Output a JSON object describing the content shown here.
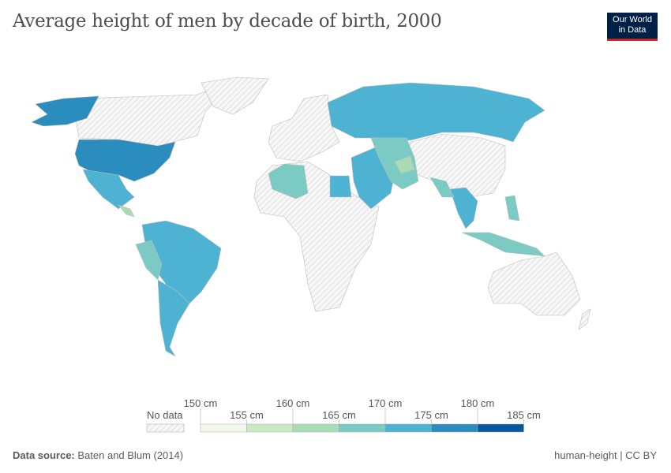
{
  "title": "Average height of men by decade of birth, 2000",
  "logo": {
    "line1": "Our World",
    "line2": "in Data"
  },
  "legend": {
    "no_data_label": "No data",
    "bins": [
      {
        "from": 150,
        "to": 155,
        "color": "#eff8ea"
      },
      {
        "from": 155,
        "to": 160,
        "color": "#cbeac3"
      },
      {
        "from": 160,
        "to": 165,
        "color": "#a8dcb5"
      },
      {
        "from": 165,
        "to": 170,
        "color": "#7bcbc4"
      },
      {
        "from": 170,
        "to": 175,
        "color": "#4eb3d3"
      },
      {
        "from": 175,
        "to": 180,
        "color": "#2b8cbe"
      },
      {
        "from": 180,
        "to": 185,
        "color": "#08589e"
      }
    ],
    "tick_labels": [
      "150 cm",
      "155 cm",
      "160 cm",
      "165 cm",
      "170 cm",
      "175 cm",
      "180 cm",
      "185 cm"
    ]
  },
  "footer": {
    "source_label": "Data source:",
    "source": "Baten and Blum (2014)",
    "slug": "human-height | CC BY"
  }
}
